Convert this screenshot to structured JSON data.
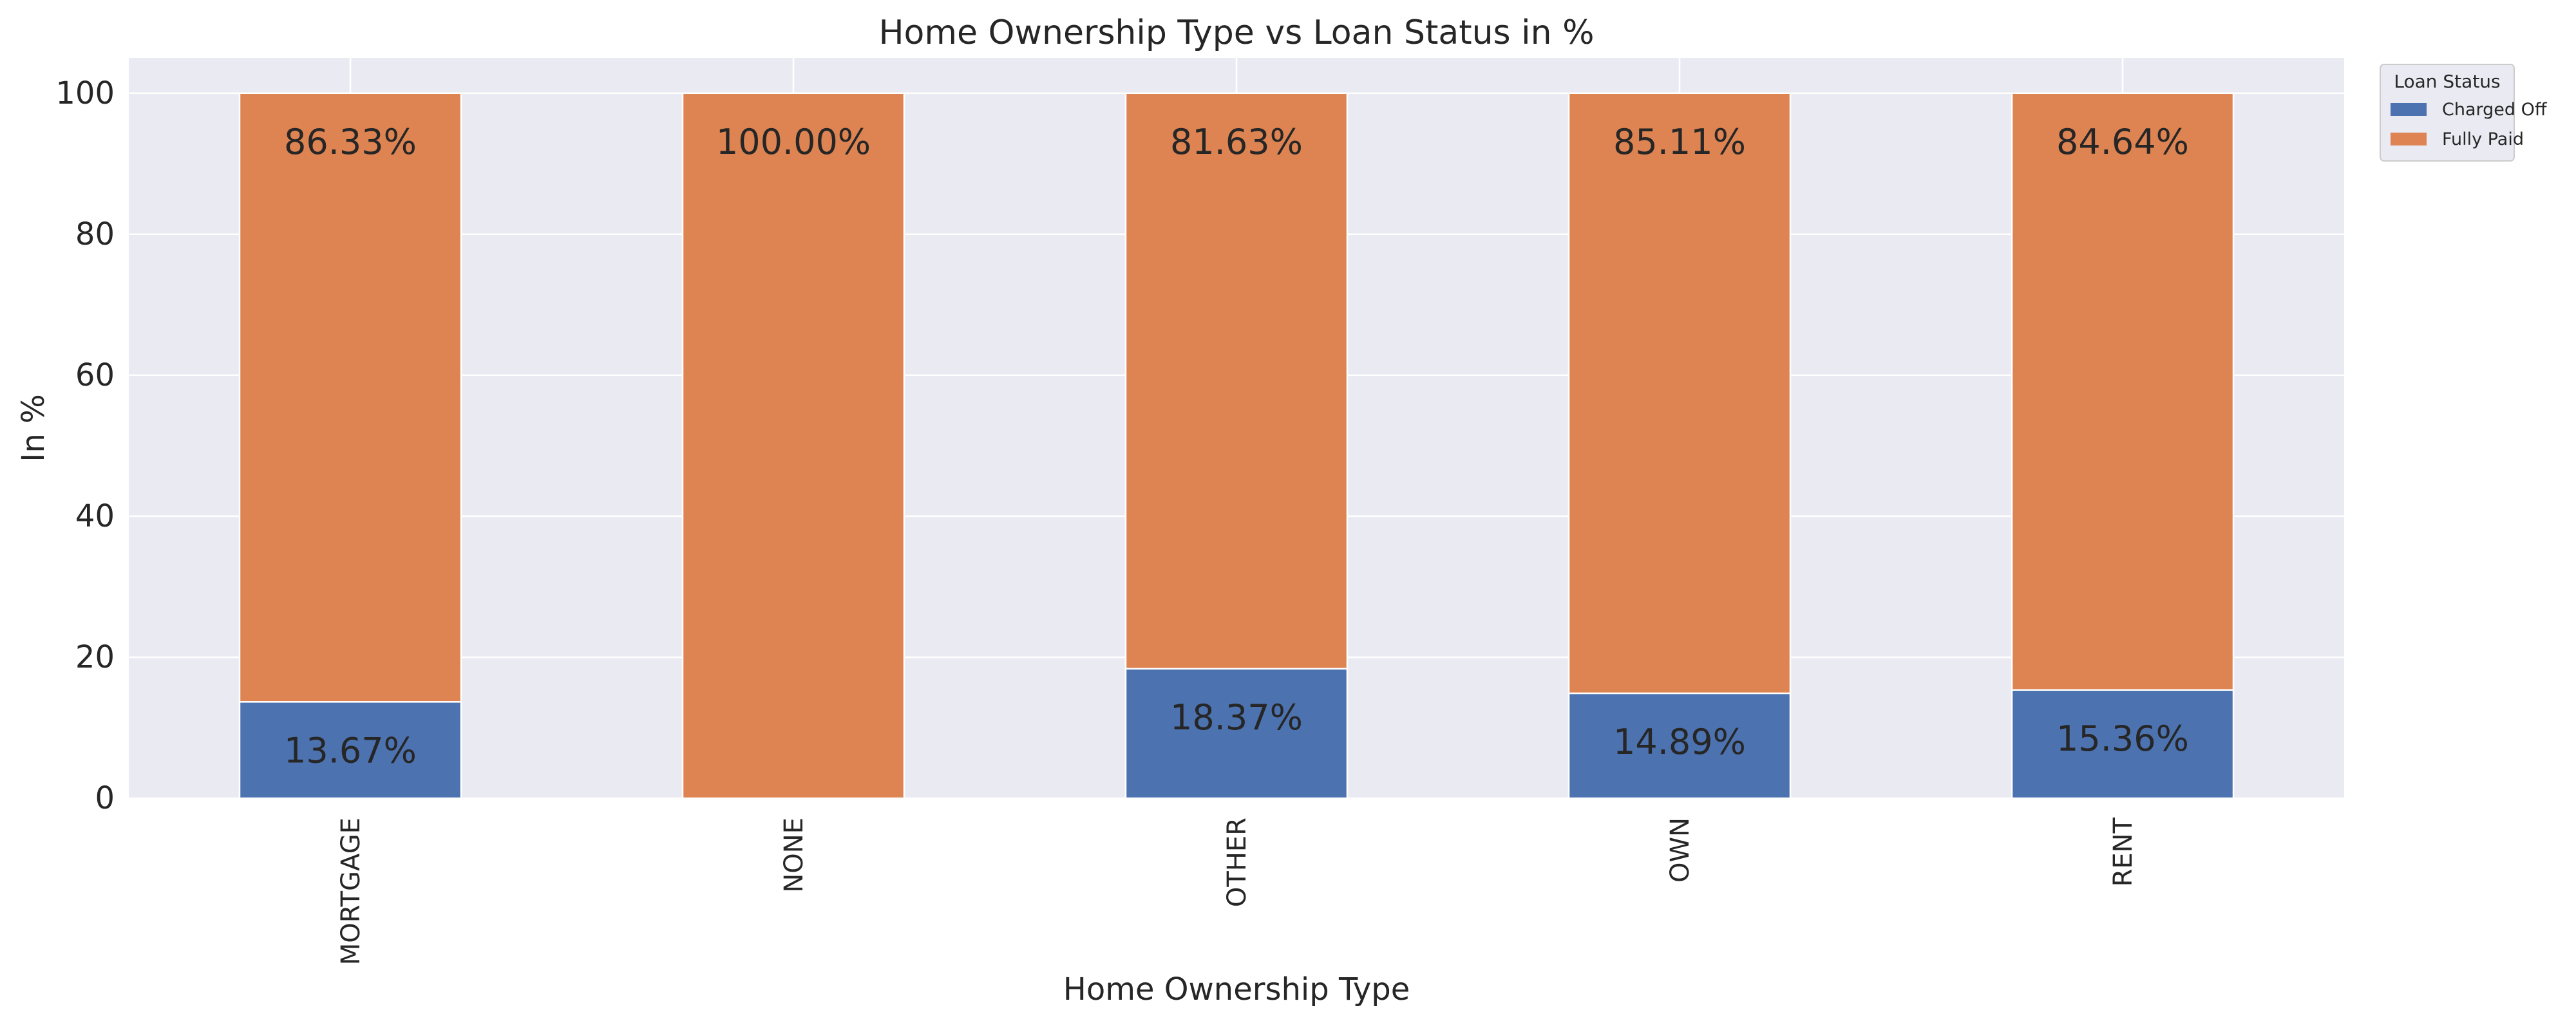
{
  "chart_data": {
    "type": "bar",
    "stacked": true,
    "title": "Home Ownership Type vs Loan Status in %",
    "xlabel": "Home Ownership Type",
    "ylabel": "In %",
    "ylim": [
      0,
      105
    ],
    "yticks": [
      0,
      20,
      40,
      60,
      80,
      100
    ],
    "grid": true,
    "background": "#eaeaf2",
    "categories": [
      "MORTGAGE",
      "NONE",
      "OTHER",
      "OWN",
      "RENT"
    ],
    "series": [
      {
        "name": "Charged Off",
        "color": "#4c72b0",
        "values": [
          13.67,
          0,
          18.37,
          14.89,
          15.36
        ],
        "labels": [
          "13.67%",
          "",
          "18.37%",
          "14.89%",
          "15.36%"
        ]
      },
      {
        "name": "Fully Paid",
        "color": "#dd8452",
        "values": [
          86.33,
          100.0,
          81.63,
          85.11,
          84.64
        ],
        "labels": [
          "86.33%",
          "100.00%",
          "81.63%",
          "85.11%",
          "84.64%"
        ]
      }
    ],
    "legend": {
      "title": "Loan Status",
      "placement": "outside-top-right"
    }
  }
}
